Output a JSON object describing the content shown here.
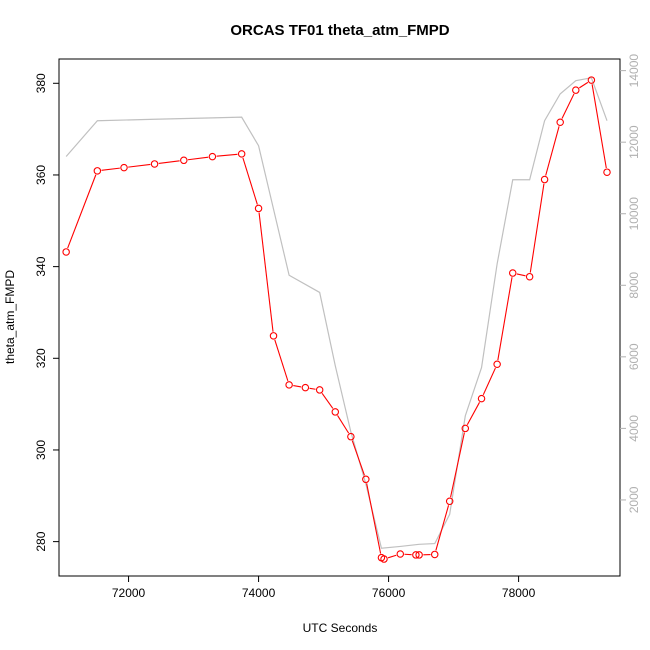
{
  "chart_data": {
    "type": "line",
    "title": "ORCAS TF01 theta_atm_FMPD",
    "xlabel": "UTC Seconds",
    "ylabel": "theta_atm_FMPD",
    "xlim": [
      70930,
      79560
    ],
    "ylim": [
      272.5,
      385.3
    ],
    "y2lim": [
      -126,
      14325
    ],
    "x_ticks": [
      72000,
      74000,
      76000,
      78000
    ],
    "y_ticks": [
      280,
      300,
      320,
      340,
      360,
      380
    ],
    "y2_ticks": [
      2000,
      4000,
      6000,
      8000,
      10000,
      12000,
      14000
    ],
    "grid": false,
    "series": [
      {
        "role": "primary",
        "color": "#ff0000",
        "marker": "open-circle",
        "x": [
          71040,
          71520,
          71930,
          72400,
          72850,
          73290,
          73740,
          74000,
          74230,
          74470,
          74720,
          74940,
          75180,
          75420,
          75650,
          75890,
          75930,
          76180,
          76420,
          76470,
          76710,
          76940,
          77180,
          77430,
          77670,
          77910,
          78170,
          78400,
          78640,
          78880,
          79120,
          79360
        ],
        "y": [
          343.2,
          360.9,
          361.6,
          362.4,
          363.2,
          364.0,
          364.6,
          352.7,
          324.9,
          314.2,
          313.6,
          313.1,
          308.3,
          302.9,
          293.6,
          276.5,
          276.2,
          277.3,
          277.1,
          277.1,
          277.2,
          288.8,
          304.7,
          311.2,
          318.7,
          338.6,
          337.8,
          359.0,
          371.5,
          378.5,
          380.7,
          360.6
        ]
      },
      {
        "role": "secondary",
        "color": "#c0c0c0",
        "x": [
          71040,
          71520,
          72400,
          73290,
          73740,
          74000,
          74470,
          74940,
          75180,
          75420,
          75650,
          75890,
          76180,
          76470,
          76710,
          76940,
          77180,
          77430,
          77670,
          77910,
          78170,
          78400,
          78640,
          78880,
          79120,
          79360
        ],
        "y": [
          11600,
          12600,
          12640,
          12680,
          12700,
          11900,
          8280,
          7800,
          5750,
          3900,
          2450,
          650,
          700,
          760,
          780,
          1600,
          4350,
          5700,
          8600,
          10950,
          10950,
          12600,
          13350,
          13720,
          13800,
          12600
        ]
      }
    ]
  }
}
